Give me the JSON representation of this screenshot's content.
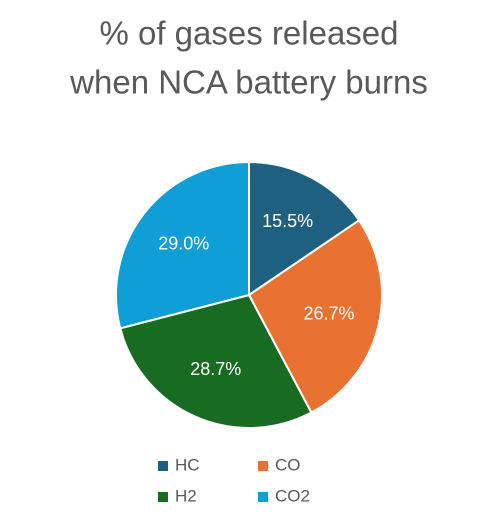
{
  "chart_data": {
    "type": "pie",
    "title": [
      "% of gases released",
      "when NCA battery burns"
    ],
    "categories": [
      "HC",
      "CO",
      "H2",
      "CO2"
    ],
    "values": [
      15.5,
      26.7,
      28.7,
      29.0
    ],
    "value_labels": [
      "15.5%",
      "26.7%",
      "28.7%",
      "29.0%"
    ],
    "colors": [
      "#1f5f80",
      "#e97132",
      "#196b24",
      "#0f9ed5"
    ],
    "legend": "bottom"
  }
}
